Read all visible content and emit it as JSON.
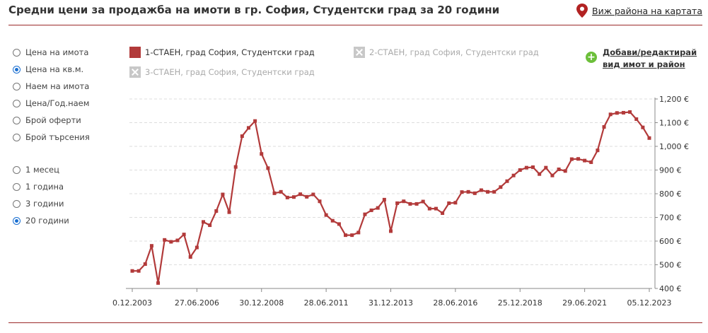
{
  "header": {
    "title": "Средни цени за продажба на имоти в гр. София, Студентски град за 20 години",
    "map_link": "Виж района на картата"
  },
  "controls": {
    "metric_options": [
      {
        "label": "Цена на имота",
        "checked": false
      },
      {
        "label": "Цена на кв.м.",
        "checked": true
      },
      {
        "label": "Наем на имота",
        "checked": false
      },
      {
        "label": "Цена/Год.наем",
        "checked": false
      },
      {
        "label": "Брой оферти",
        "checked": false
      },
      {
        "label": "Брой търсения",
        "checked": false
      }
    ],
    "period_options": [
      {
        "label": "1 месец",
        "checked": false
      },
      {
        "label": "1 година",
        "checked": false
      },
      {
        "label": "3 години",
        "checked": false
      },
      {
        "label": "20 години",
        "checked": true
      }
    ]
  },
  "legend": {
    "items": [
      {
        "label": "1-СТАЕН, град София, Студентски град",
        "active": true
      },
      {
        "label": "2-СТАЕН, град София, Студентски град",
        "active": false
      },
      {
        "label": "3-СТАЕН, град София, Студентски град",
        "active": false
      }
    ],
    "add_link": [
      "Добави/редактирай",
      "вид имот и район"
    ]
  },
  "colors": {
    "series": "#b23a3a",
    "accent": "#9c2a2a",
    "grid": "#dddddd"
  },
  "chart_data": {
    "type": "line",
    "title": "",
    "xlabel": "",
    "ylabel": "",
    "ylim": [
      400,
      1200
    ],
    "y_ticks": [
      "400 €",
      "500 €",
      "600 €",
      "700 €",
      "800 €",
      "900 €",
      "1,000 €",
      "1,100 €",
      "1,200 €"
    ],
    "x_tick_labels": [
      "0.12.2003",
      "27.06.2006",
      "30.12.2008",
      "28.06.2011",
      "31.12.2013",
      "28.06.2016",
      "25.12.2018",
      "29.06.2021",
      "05.12.2023"
    ],
    "grid": true,
    "legend_position": "top",
    "series": [
      {
        "name": "1-СТАЕН, град София, Студентски град",
        "values": [
          474,
          474,
          503,
          580,
          423,
          605,
          597,
          603,
          628,
          533,
          573,
          681,
          667,
          727,
          797,
          722,
          913,
          1043,
          1078,
          1107,
          968,
          908,
          802,
          808,
          784,
          786,
          798,
          787,
          797,
          768,
          710,
          686,
          672,
          625,
          625,
          636,
          713,
          730,
          740,
          775,
          642,
          760,
          768,
          757,
          757,
          767,
          737,
          737,
          718,
          760,
          762,
          807,
          808,
          802,
          815,
          808,
          808,
          828,
          853,
          877,
          900,
          910,
          912,
          883,
          910,
          877,
          903,
          896,
          946,
          947,
          940,
          933,
          983,
          1082,
          1135,
          1141,
          1142,
          1145,
          1115,
          1080,
          1035
        ]
      }
    ]
  }
}
